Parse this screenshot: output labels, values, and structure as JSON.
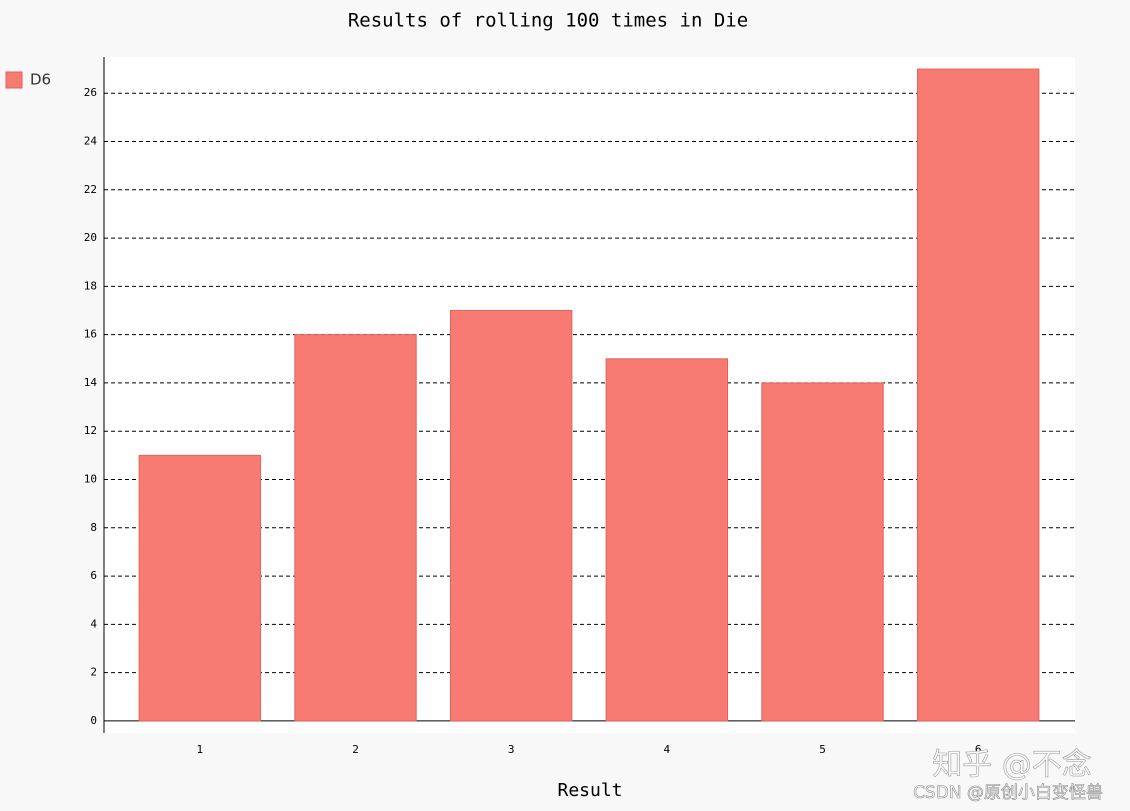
{
  "chart_data": {
    "type": "bar",
    "title": "Results of rolling 100 times in Die",
    "x_label": "Result",
    "categories": [
      "1",
      "2",
      "3",
      "4",
      "5",
      "6"
    ],
    "series": [
      {
        "name": "D6",
        "color": "#f77b72",
        "values": [
          11,
          16,
          17,
          15,
          14,
          27
        ]
      }
    ],
    "ylim": [
      -0.5,
      27.5
    ],
    "yticks": [
      0,
      2,
      4,
      6,
      8,
      10,
      12,
      14,
      16,
      18,
      20,
      22,
      24,
      26
    ],
    "grid": true,
    "legend": "left"
  },
  "watermarks": [
    "知乎 @不念",
    "CSDN @原创小白变怪兽"
  ]
}
